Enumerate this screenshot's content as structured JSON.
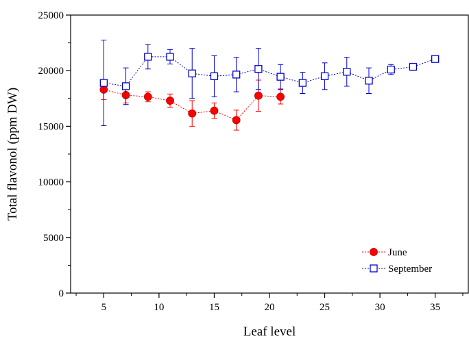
{
  "chart_data": {
    "type": "line",
    "xlabel": "Leaf level",
    "ylabel": "Total flavonol (ppm DW)",
    "xlim": [
      2,
      38
    ],
    "ylim": [
      0,
      25000
    ],
    "x_ticks": [
      5,
      10,
      15,
      20,
      25,
      30,
      35
    ],
    "y_ticks": [
      0,
      5000,
      10000,
      15000,
      20000,
      25000
    ],
    "x_tick_labels": [
      "5",
      "10",
      "15",
      "20",
      "25",
      "30",
      "35"
    ],
    "y_tick_labels": [
      "0",
      "5000",
      "10000",
      "15000",
      "20000",
      "25000"
    ],
    "grid": false,
    "legend_position": "bottom-right",
    "series": [
      {
        "name": "June",
        "color": "#ff0000",
        "marker": "filled-circle",
        "line_style": "dotted",
        "x": [
          5,
          7,
          9,
          11,
          13,
          15,
          17,
          19,
          21
        ],
        "y": [
          18300,
          17800,
          17650,
          17300,
          16150,
          16400,
          15550,
          17750,
          17650
        ],
        "error": [
          900,
          700,
          450,
          600,
          1150,
          700,
          900,
          1400,
          650
        ]
      },
      {
        "name": "September",
        "color": "#0000cc",
        "marker": "open-square",
        "line_style": "dotted",
        "x": [
          5,
          7,
          9,
          11,
          13,
          15,
          17,
          19,
          21,
          23,
          25,
          27,
          29,
          31,
          33,
          35
        ],
        "y": [
          18900,
          18600,
          21250,
          21250,
          19750,
          19500,
          19650,
          20150,
          19450,
          18900,
          19500,
          19900,
          19100,
          20100,
          20350,
          21050
        ],
        "error": [
          3850,
          1650,
          1100,
          650,
          2250,
          1850,
          1550,
          1850,
          1100,
          950,
          1200,
          1300,
          1150,
          450,
          200,
          0
        ]
      }
    ]
  }
}
